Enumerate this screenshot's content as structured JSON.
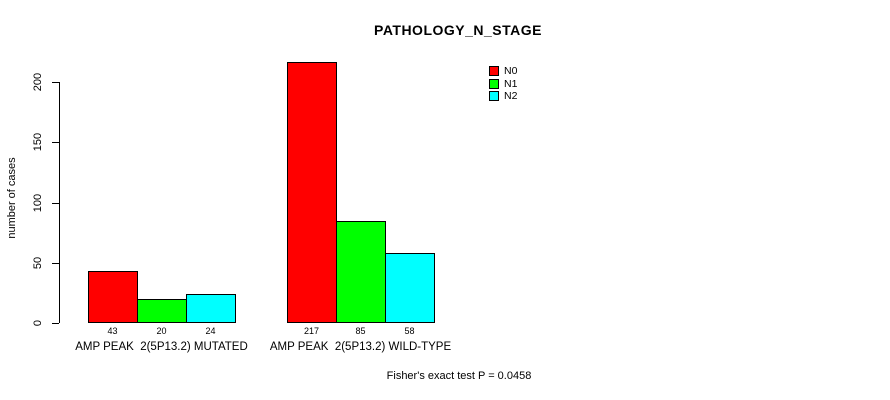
{
  "chart_data": {
    "type": "bar",
    "title": "PATHOLOGY_N_STAGE",
    "xlabel": "",
    "ylabel": "number of cases",
    "categories": [
      "AMP PEAK  2(5P13.2) MUTATED",
      "AMP PEAK  2(5P13.2) WILD-TYPE"
    ],
    "series": [
      {
        "name": "N0",
        "color": "#ff0000",
        "values": [
          43,
          217
        ]
      },
      {
        "name": "N1",
        "color": "#00ff00",
        "values": [
          20,
          85
        ]
      },
      {
        "name": "N2",
        "color": "#00ffff",
        "values": [
          24,
          58
        ]
      }
    ],
    "yticks": [
      0,
      50,
      100,
      150,
      200
    ],
    "ylim": [
      0,
      217
    ],
    "grid": false,
    "legend": {
      "position": "top-right",
      "entries": [
        {
          "label": "N0",
          "color": "#ff0000"
        },
        {
          "label": "N1",
          "color": "#00ff00"
        },
        {
          "label": "N2",
          "color": "#00ffff"
        }
      ]
    },
    "annotation": "Fisher's exact test P = 0.0458"
  }
}
